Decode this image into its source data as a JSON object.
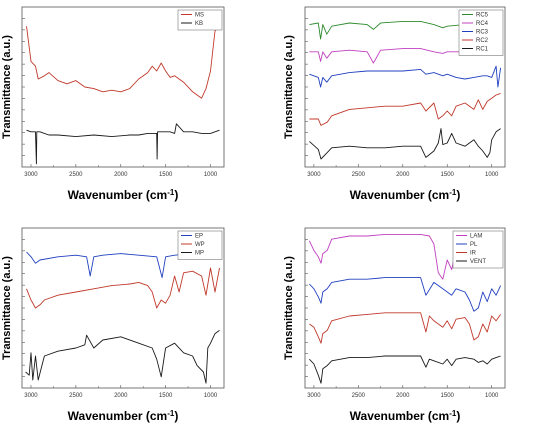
{
  "chart_data": [
    {
      "type": "line",
      "title": "",
      "xlabel": "Wavenumber (cm",
      "xlabel_sup": "-1",
      "xlabel_tail": ")",
      "ylabel": "Transmittance (a.u.)",
      "xlim": [
        3100,
        850
      ],
      "x_reversed": true,
      "xticks": [
        3000,
        2500,
        2000,
        1500,
        1000
      ],
      "xtick_labels": [
        "3000",
        "2500",
        "2000",
        "1500",
        "1000"
      ],
      "legend_position": "top-right",
      "series": [
        {
          "name": "MS",
          "color": "#c0392b",
          "x": [
            3050,
            3000,
            2950,
            2920,
            2850,
            2800,
            2700,
            2600,
            2500,
            2400,
            2300,
            2200,
            2100,
            2000,
            1900,
            1800,
            1700,
            1650,
            1600,
            1550,
            1500,
            1450,
            1400,
            1300,
            1200,
            1100,
            1050,
            1000,
            950,
            900
          ],
          "y": [
            0.88,
            0.66,
            0.63,
            0.55,
            0.57,
            0.59,
            0.54,
            0.52,
            0.54,
            0.5,
            0.49,
            0.47,
            0.48,
            0.47,
            0.49,
            0.55,
            0.59,
            0.63,
            0.6,
            0.65,
            0.6,
            0.56,
            0.57,
            0.53,
            0.47,
            0.43,
            0.49,
            0.6,
            0.85,
            0.88
          ]
        },
        {
          "name": "KB",
          "color": "#1a1a1a",
          "x": [
            3050,
            3000,
            2950,
            2940,
            2935,
            2900,
            2850,
            2800,
            2700,
            2500,
            2300,
            2100,
            1900,
            1800,
            1700,
            1600,
            1595,
            1590,
            1550,
            1450,
            1400,
            1380,
            1300,
            1200,
            1100,
            1000,
            950,
            900
          ],
          "y": [
            0.23,
            0.22,
            0.22,
            0.02,
            0.22,
            0.22,
            0.21,
            0.2,
            0.2,
            0.19,
            0.2,
            0.19,
            0.2,
            0.2,
            0.21,
            0.21,
            0.05,
            0.22,
            0.22,
            0.22,
            0.21,
            0.27,
            0.22,
            0.22,
            0.21,
            0.21,
            0.22,
            0.23
          ]
        }
      ]
    },
    {
      "type": "line",
      "title": "",
      "xlabel": "Wavenumber (cm",
      "xlabel_sup": "-1",
      "xlabel_tail": ")",
      "ylabel": "Transmittance (a.u.)",
      "xlim": [
        3100,
        850
      ],
      "x_reversed": true,
      "xticks": [
        3000,
        2500,
        2000,
        1500,
        1000
      ],
      "xtick_labels": [
        "3000",
        "2500",
        "2000",
        "1500",
        "1000"
      ],
      "legend_position": "top-right",
      "series": [
        {
          "name": "RC5",
          "color": "#2e8b2e",
          "x": [
            3050,
            2950,
            2925,
            2900,
            2855,
            2800,
            2600,
            2400,
            2330,
            2250,
            2000,
            1800,
            1650,
            1550,
            1500,
            1300,
            1150,
            1050,
            1000,
            950,
            900
          ],
          "y": [
            0.89,
            0.9,
            0.8,
            0.89,
            0.83,
            0.88,
            0.9,
            0.89,
            0.86,
            0.9,
            0.91,
            0.91,
            0.89,
            0.87,
            0.88,
            0.89,
            0.85,
            0.83,
            0.88,
            0.9,
            0.91
          ]
        },
        {
          "name": "RC4",
          "color": "#c040c0",
          "x": [
            3050,
            2950,
            2925,
            2900,
            2855,
            2800,
            2600,
            2400,
            2330,
            2250,
            2000,
            1800,
            1650,
            1550,
            1500,
            1300,
            1150,
            1050,
            1000,
            950,
            900
          ],
          "y": [
            0.72,
            0.72,
            0.66,
            0.72,
            0.68,
            0.72,
            0.73,
            0.72,
            0.65,
            0.73,
            0.74,
            0.74,
            0.72,
            0.71,
            0.72,
            0.72,
            0.71,
            0.71,
            0.72,
            0.73,
            0.73
          ]
        },
        {
          "name": "RC3",
          "color": "#2040c0",
          "x": [
            3050,
            2950,
            2925,
            2900,
            2855,
            2800,
            2600,
            2400,
            2200,
            2000,
            1800,
            1740,
            1650,
            1550,
            1500,
            1400,
            1300,
            1200,
            1100,
            1050,
            1000,
            950,
            930,
            900
          ],
          "y": [
            0.58,
            0.56,
            0.5,
            0.56,
            0.53,
            0.57,
            0.59,
            0.6,
            0.6,
            0.6,
            0.61,
            0.58,
            0.59,
            0.57,
            0.58,
            0.56,
            0.55,
            0.56,
            0.57,
            0.57,
            0.56,
            0.63,
            0.5,
            0.62
          ]
        },
        {
          "name": "RC2",
          "color": "#c0392b",
          "x": [
            3050,
            2950,
            2920,
            2850,
            2800,
            2600,
            2400,
            2200,
            2000,
            1800,
            1740,
            1650,
            1600,
            1550,
            1500,
            1450,
            1400,
            1300,
            1200,
            1150,
            1100,
            1050,
            1000,
            950,
            900
          ],
          "y": [
            0.3,
            0.3,
            0.26,
            0.28,
            0.32,
            0.36,
            0.37,
            0.38,
            0.38,
            0.4,
            0.35,
            0.4,
            0.3,
            0.32,
            0.35,
            0.32,
            0.38,
            0.4,
            0.36,
            0.42,
            0.36,
            0.41,
            0.43,
            0.45,
            0.46
          ]
        },
        {
          "name": "RC1",
          "color": "#1a1a1a",
          "x": [
            3050,
            2950,
            2920,
            2850,
            2800,
            2600,
            2400,
            2200,
            2000,
            1800,
            1740,
            1650,
            1600,
            1570,
            1550,
            1500,
            1450,
            1400,
            1300,
            1200,
            1150,
            1100,
            1050,
            1020,
            1000,
            950,
            900
          ],
          "y": [
            0.16,
            0.11,
            0.05,
            0.09,
            0.12,
            0.13,
            0.12,
            0.12,
            0.13,
            0.13,
            0.06,
            0.1,
            0.15,
            0.24,
            0.14,
            0.15,
            0.21,
            0.15,
            0.13,
            0.17,
            0.13,
            0.1,
            0.06,
            0.09,
            0.17,
            0.22,
            0.24
          ]
        }
      ]
    },
    {
      "type": "line",
      "title": "",
      "xlabel": "Wavenumber (cm",
      "xlabel_sup": "-1",
      "xlabel_tail": ")",
      "ylabel": "Transmittance (a.u.)",
      "xlim": [
        3100,
        850
      ],
      "x_reversed": true,
      "xticks": [
        3000,
        2500,
        2000,
        1500,
        1000
      ],
      "xtick_labels": [
        "3000",
        "2500",
        "2000",
        "1500",
        "1000"
      ],
      "legend_position": "top-right",
      "series": [
        {
          "name": "EP",
          "color": "#2040c0",
          "x": [
            3050,
            3000,
            2950,
            2900,
            2700,
            2500,
            2380,
            2340,
            2300,
            2200,
            2000,
            1800,
            1600,
            1540,
            1500,
            1400,
            1200,
            1100,
            1050,
            1000,
            950,
            900
          ],
          "y": [
            0.85,
            0.82,
            0.78,
            0.8,
            0.82,
            0.83,
            0.82,
            0.7,
            0.82,
            0.83,
            0.84,
            0.83,
            0.82,
            0.69,
            0.82,
            0.83,
            0.84,
            0.86,
            0.92,
            0.9,
            0.94,
            0.95
          ]
        },
        {
          "name": "WP",
          "color": "#c0392b",
          "x": [
            3050,
            3000,
            2950,
            2900,
            2850,
            2700,
            2500,
            2300,
            2100,
            1900,
            1800,
            1700,
            1650,
            1600,
            1550,
            1500,
            1450,
            1400,
            1350,
            1300,
            1200,
            1100,
            1050,
            1000,
            950,
            900
          ],
          "y": [
            0.62,
            0.55,
            0.5,
            0.52,
            0.55,
            0.58,
            0.6,
            0.62,
            0.64,
            0.65,
            0.66,
            0.64,
            0.6,
            0.5,
            0.55,
            0.53,
            0.58,
            0.7,
            0.6,
            0.72,
            0.73,
            0.7,
            0.58,
            0.75,
            0.6,
            0.75
          ]
        },
        {
          "name": "MP",
          "color": "#1a1a1a",
          "x": [
            3060,
            3020,
            3000,
            2980,
            2950,
            2920,
            2850,
            2700,
            2500,
            2400,
            2380,
            2300,
            2200,
            2000,
            1800,
            1650,
            1600,
            1550,
            1500,
            1400,
            1300,
            1200,
            1150,
            1080,
            1050,
            1030,
            1000,
            950,
            900
          ],
          "y": [
            0.1,
            0.08,
            0.22,
            0.05,
            0.2,
            0.05,
            0.2,
            0.23,
            0.25,
            0.27,
            0.33,
            0.25,
            0.3,
            0.32,
            0.28,
            0.25,
            0.18,
            0.07,
            0.25,
            0.28,
            0.22,
            0.2,
            0.14,
            0.1,
            0.03,
            0.25,
            0.28,
            0.34,
            0.36
          ]
        }
      ]
    },
    {
      "type": "line",
      "title": "",
      "xlabel": "Wavenumber (cm",
      "xlabel_sup": "-1",
      "xlabel_tail": ")",
      "ylabel": "Transmittance (a.u.)",
      "xlim": [
        3100,
        850
      ],
      "x_reversed": true,
      "xticks": [
        3000,
        2500,
        2000,
        1500,
        1000
      ],
      "xtick_labels": [
        "3000",
        "2500",
        "2000",
        "1500",
        "1000"
      ],
      "legend_position": "top-right",
      "series": [
        {
          "name": "LAM",
          "color": "#c040c0",
          "x": [
            3050,
            3000,
            2950,
            2920,
            2900,
            2850,
            2800,
            2600,
            2400,
            2200,
            2000,
            1800,
            1700,
            1650,
            1600,
            1550,
            1500,
            1450,
            1400,
            1350,
            1300,
            1200,
            1150,
            1100,
            1050,
            1000,
            950,
            900
          ],
          "y": [
            0.92,
            0.86,
            0.82,
            0.78,
            0.84,
            0.86,
            0.93,
            0.95,
            0.95,
            0.96,
            0.96,
            0.96,
            0.95,
            0.9,
            0.72,
            0.68,
            0.8,
            0.74,
            0.88,
            0.92,
            0.93,
            0.94,
            0.93,
            0.96,
            0.92,
            0.96,
            0.94,
            0.96
          ]
        },
        {
          "name": "PL",
          "color": "#2040c0",
          "x": [
            3050,
            3000,
            2950,
            2920,
            2900,
            2850,
            2800,
            2600,
            2400,
            2200,
            2000,
            1800,
            1740,
            1650,
            1550,
            1450,
            1400,
            1300,
            1250,
            1200,
            1150,
            1100,
            1050,
            1000,
            950,
            900
          ],
          "y": [
            0.65,
            0.62,
            0.57,
            0.53,
            0.6,
            0.62,
            0.66,
            0.68,
            0.68,
            0.69,
            0.69,
            0.69,
            0.58,
            0.66,
            0.62,
            0.58,
            0.62,
            0.6,
            0.55,
            0.48,
            0.5,
            0.6,
            0.54,
            0.62,
            0.58,
            0.64
          ]
        },
        {
          "name": "IR",
          "color": "#c0392b",
          "x": [
            3050,
            3000,
            2950,
            2920,
            2900,
            2850,
            2800,
            2600,
            2400,
            2200,
            2000,
            1800,
            1740,
            1700,
            1650,
            1550,
            1500,
            1450,
            1400,
            1300,
            1250,
            1200,
            1150,
            1100,
            1050,
            1000,
            950,
            900
          ],
          "y": [
            0.4,
            0.38,
            0.32,
            0.28,
            0.34,
            0.36,
            0.42,
            0.45,
            0.46,
            0.47,
            0.47,
            0.47,
            0.35,
            0.45,
            0.42,
            0.38,
            0.42,
            0.37,
            0.43,
            0.44,
            0.4,
            0.3,
            0.32,
            0.4,
            0.35,
            0.45,
            0.42,
            0.46
          ]
        },
        {
          "name": "VENT",
          "color": "#1a1a1a",
          "x": [
            3050,
            3000,
            2950,
            2920,
            2900,
            2850,
            2800,
            2600,
            2400,
            2200,
            2000,
            1800,
            1740,
            1700,
            1650,
            1550,
            1500,
            1450,
            1400,
            1300,
            1200,
            1150,
            1100,
            1050,
            1000,
            950,
            900
          ],
          "y": [
            0.18,
            0.15,
            0.08,
            0.03,
            0.12,
            0.14,
            0.17,
            0.19,
            0.19,
            0.2,
            0.2,
            0.2,
            0.13,
            0.18,
            0.17,
            0.15,
            0.18,
            0.14,
            0.18,
            0.19,
            0.18,
            0.16,
            0.17,
            0.15,
            0.18,
            0.19,
            0.2
          ]
        }
      ]
    }
  ]
}
